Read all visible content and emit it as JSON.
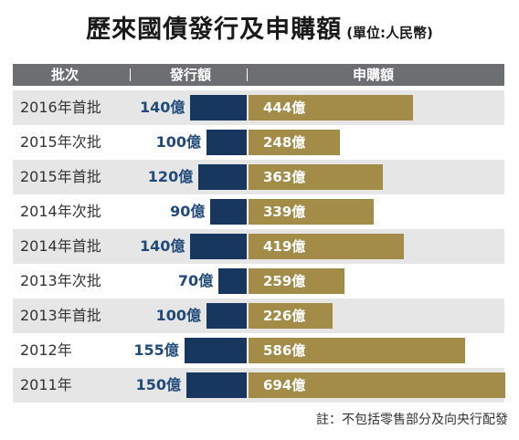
{
  "title": "歷來國債發行及申購額",
  "unit_note": "(單位:人民幣)",
  "headers": {
    "batch": "批次",
    "issue": "發行額",
    "subscription": "申購額"
  },
  "footnote": "註：不包括零售部分及向央行配發",
  "chart_data": {
    "type": "bar",
    "title": "歷來國債發行及申購額",
    "unit": "(單位:人民幣)",
    "categories": [
      "2016年首批",
      "2015年次批",
      "2015年首批",
      "2014年次批",
      "2014年首批",
      "2013年次批",
      "2013年首批",
      "2012年",
      "2011年"
    ],
    "series": [
      {
        "name": "發行額",
        "values": [
          140,
          100,
          120,
          90,
          140,
          70,
          100,
          155,
          150
        ],
        "labels": [
          "140億",
          "100億",
          "120億",
          "90億",
          "140億",
          "70億",
          "100億",
          "155億",
          "150億"
        ],
        "color": "#17375e"
      },
      {
        "name": "申購額",
        "values": [
          444,
          248,
          363,
          339,
          419,
          259,
          226,
          586,
          694
        ],
        "labels": [
          "444億",
          "248億",
          "363億",
          "339億",
          "419億",
          "259億",
          "226億",
          "586億",
          "694億"
        ],
        "color": "#a38b48"
      }
    ],
    "legend": "none",
    "grid": false
  }
}
